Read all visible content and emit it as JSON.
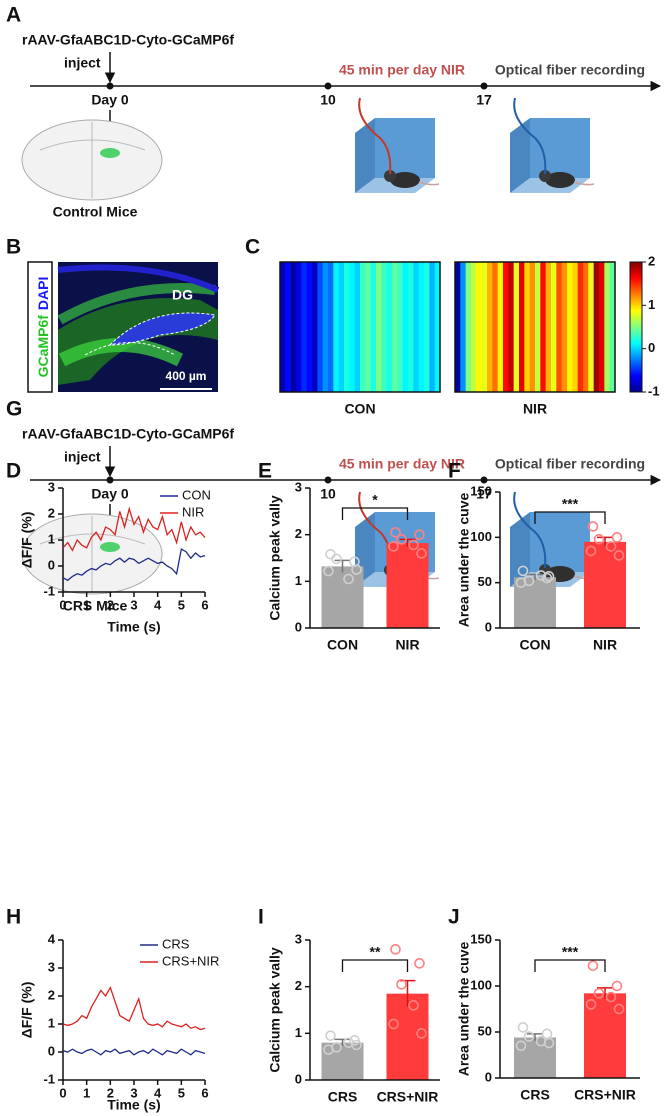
{
  "timelines": [
    {
      "panel": "A",
      "vector": "rAAV-GfaABC1D-Cyto-GCaMP6f",
      "inject": "inject",
      "days": [
        "Day 0",
        "10",
        "17"
      ],
      "treatment": "45 min per day NIR",
      "recording": "Optical fiber recording",
      "group": "Control Mice"
    },
    {
      "panel": "G",
      "vector": "rAAV-GfaABC1D-Cyto-GCaMP6f",
      "inject": "inject",
      "days": [
        "Day 0",
        "10",
        "17"
      ],
      "treatment": "45 min per day NIR",
      "recording": "Optical fiber recording",
      "group": "CRS Mice"
    }
  ],
  "microscopy": {
    "panel": "B",
    "stain1": "GCaMP6f",
    "stain2": "DAPI",
    "region": "DG",
    "scale": "400 µm"
  },
  "chart_data": [
    {
      "type": "heatmap",
      "panel": "C",
      "clim": [
        -1,
        2
      ],
      "cticks": [
        2,
        1,
        0,
        -1
      ],
      "series": [
        {
          "name": "CON",
          "values": [
            -0.8,
            -0.6,
            -0.9,
            -0.7,
            -0.5,
            -0.6,
            -0.8,
            -0.4,
            -0.2,
            -0.3,
            0.1,
            0.0,
            0.2,
            0.1,
            0.0,
            0.3,
            0.4,
            0.2,
            0.5,
            0.3,
            0.2,
            0.4,
            0.3,
            0.1,
            0.2,
            0.0,
            0.1,
            0.2,
            -0.1,
            0.1
          ]
        },
        {
          "name": "NIR",
          "values": [
            -0.9,
            -0.2,
            0.5,
            0.7,
            0.9,
            0.8,
            1.1,
            1.3,
            0.9,
            1.6,
            1.8,
            0.8,
            1.7,
            1.0,
            1.2,
            0.7,
            1.6,
            1.1,
            0.8,
            1.4,
            1.2,
            0.9,
            1.0,
            1.5,
            1.3,
            0.8,
            1.9,
            1.7,
            0.6,
            0.4
          ]
        }
      ]
    },
    {
      "type": "line",
      "panel": "D",
      "ylabel": "ΔF/F (%)",
      "xlabel": "Time (s)",
      "x": [
        0,
        0.2,
        0.4,
        0.6,
        0.8,
        1,
        1.2,
        1.4,
        1.6,
        1.8,
        2,
        2.2,
        2.4,
        2.6,
        2.8,
        3,
        3.2,
        3.4,
        3.6,
        3.8,
        4,
        4.2,
        4.4,
        4.6,
        4.8,
        5,
        5.2,
        5.4,
        5.6,
        5.8,
        6
      ],
      "xlim": [
        0,
        6
      ],
      "xticks": [
        0,
        1,
        2,
        3,
        4,
        5,
        6
      ],
      "ylim": [
        -1,
        3
      ],
      "yticks": [
        -1,
        0,
        1,
        2,
        3
      ],
      "series": [
        {
          "name": "CON",
          "color": "#1f2a8a",
          "values": [
            -0.45,
            -0.55,
            -0.4,
            -0.3,
            -0.35,
            -0.2,
            -0.1,
            -0.15,
            0.0,
            0.1,
            0.05,
            0.2,
            0.3,
            0.15,
            0.3,
            0.25,
            0.1,
            0.2,
            0.3,
            0.2,
            0.1,
            0.15,
            0.0,
            -0.1,
            -0.3,
            0.65,
            0.55,
            0.3,
            0.5,
            0.35,
            0.4
          ]
        },
        {
          "name": "NIR",
          "color": "#e02020",
          "values": [
            0.7,
            0.9,
            0.6,
            1.0,
            0.8,
            0.7,
            1.1,
            1.3,
            1.0,
            1.5,
            1.4,
            1.2,
            2.1,
            1.5,
            2.2,
            1.6,
            1.9,
            1.3,
            1.8,
            1.5,
            1.4,
            1.9,
            1.2,
            1.4,
            0.9,
            1.7,
            1.0,
            1.5,
            1.2,
            1.3,
            1.1
          ]
        }
      ]
    },
    {
      "type": "bar",
      "panel": "E",
      "ylabel": "Calcium peak vally",
      "categories": [
        "CON",
        "NIR"
      ],
      "values": [
        1.32,
        1.82
      ],
      "errors": [
        0.13,
        0.08
      ],
      "colors": [
        "#a6a6a6",
        "#ff3b3b"
      ],
      "point_colors": [
        "#d0d0d0",
        "#ff8080"
      ],
      "points": [
        [
          1.58,
          1.42,
          1.48,
          1.05,
          1.22,
          1.25
        ],
        [
          2.05,
          2.0,
          1.9,
          1.78,
          1.75,
          1.6
        ]
      ],
      "ylim": [
        0,
        3
      ],
      "yticks": [
        0,
        1,
        2,
        3
      ],
      "significance": "*"
    },
    {
      "type": "bar",
      "panel": "F",
      "ylabel": "Area under the cuve",
      "categories": [
        "CON",
        "NIR"
      ],
      "values": [
        56,
        95
      ],
      "errors": [
        3,
        5
      ],
      "colors": [
        "#a6a6a6",
        "#ff3b3b"
      ],
      "point_colors": [
        "#d0d0d0",
        "#ff8080"
      ],
      "points": [
        [
          63,
          55,
          52,
          58,
          50,
          57
        ],
        [
          112,
          100,
          98,
          90,
          85,
          80
        ]
      ],
      "ylim": [
        0,
        150
      ],
      "yticks": [
        0,
        50,
        100,
        150
      ],
      "significance": "***"
    },
    {
      "type": "line",
      "panel": "H",
      "ylabel": "ΔF/F (%)",
      "xlabel": "Time (s)",
      "x": [
        0,
        0.2,
        0.4,
        0.6,
        0.8,
        1,
        1.2,
        1.4,
        1.6,
        1.8,
        2,
        2.2,
        2.4,
        2.6,
        2.8,
        3,
        3.2,
        3.4,
        3.6,
        3.8,
        4,
        4.2,
        4.4,
        4.6,
        4.8,
        5,
        5.2,
        5.4,
        5.6,
        5.8,
        6
      ],
      "xlim": [
        0,
        6
      ],
      "xticks": [
        0,
        1,
        2,
        3,
        4,
        5,
        6
      ],
      "ylim": [
        -1,
        4
      ],
      "yticks": [
        -1,
        0,
        1,
        2,
        3,
        4
      ],
      "series": [
        {
          "name": "CRS",
          "color": "#1f2a8a",
          "values": [
            0.05,
            0.0,
            0.1,
            0.0,
            -0.05,
            0.05,
            0.1,
            0.0,
            -0.1,
            0.05,
            0.0,
            0.1,
            -0.05,
            0.0,
            0.05,
            -0.1,
            0.0,
            0.05,
            -0.05,
            0.1,
            0.0,
            -0.1,
            0.05,
            0.0,
            -0.05,
            0.1,
            0.0,
            -0.1,
            0.05,
            0.0,
            -0.05
          ]
        },
        {
          "name": "CRS+NIR",
          "color": "#e02020",
          "values": [
            1.0,
            0.95,
            1.0,
            1.1,
            1.3,
            1.2,
            1.6,
            1.9,
            2.2,
            2.0,
            2.3,
            1.8,
            1.3,
            1.2,
            1.1,
            1.5,
            1.9,
            1.2,
            1.0,
            0.95,
            1.0,
            0.9,
            1.1,
            1.0,
            0.95,
            0.9,
            1.0,
            0.85,
            0.9,
            0.8,
            0.85
          ]
        }
      ]
    },
    {
      "type": "bar",
      "panel": "I",
      "ylabel": "Calcium peak vally",
      "categories": [
        "CRS",
        "CRS+NIR"
      ],
      "values": [
        0.8,
        1.85
      ],
      "errors": [
        0.07,
        0.28
      ],
      "colors": [
        "#a6a6a6",
        "#ff3b3b"
      ],
      "point_colors": [
        "#d0d0d0",
        "#ff8080"
      ],
      "points": [
        [
          0.95,
          0.85,
          0.7,
          0.8,
          0.65,
          0.75
        ],
        [
          2.8,
          2.5,
          2.05,
          1.6,
          1.2,
          1.0
        ]
      ],
      "ylim": [
        0,
        3
      ],
      "yticks": [
        0,
        1,
        2,
        3
      ],
      "significance": "**"
    },
    {
      "type": "bar",
      "panel": "J",
      "ylabel": "Area under the cuve",
      "categories": [
        "CRS",
        "CRS+NIR"
      ],
      "values": [
        44,
        92
      ],
      "errors": [
        4,
        6
      ],
      "colors": [
        "#a6a6a6",
        "#ff3b3b"
      ],
      "point_colors": [
        "#d0d0d0",
        "#ff8080"
      ],
      "points": [
        [
          55,
          48,
          45,
          40,
          35,
          38
        ],
        [
          122,
          100,
          92,
          88,
          80,
          75
        ]
      ],
      "ylim": [
        0,
        150
      ],
      "yticks": [
        0,
        50,
        100,
        150
      ],
      "significance": "***"
    }
  ]
}
